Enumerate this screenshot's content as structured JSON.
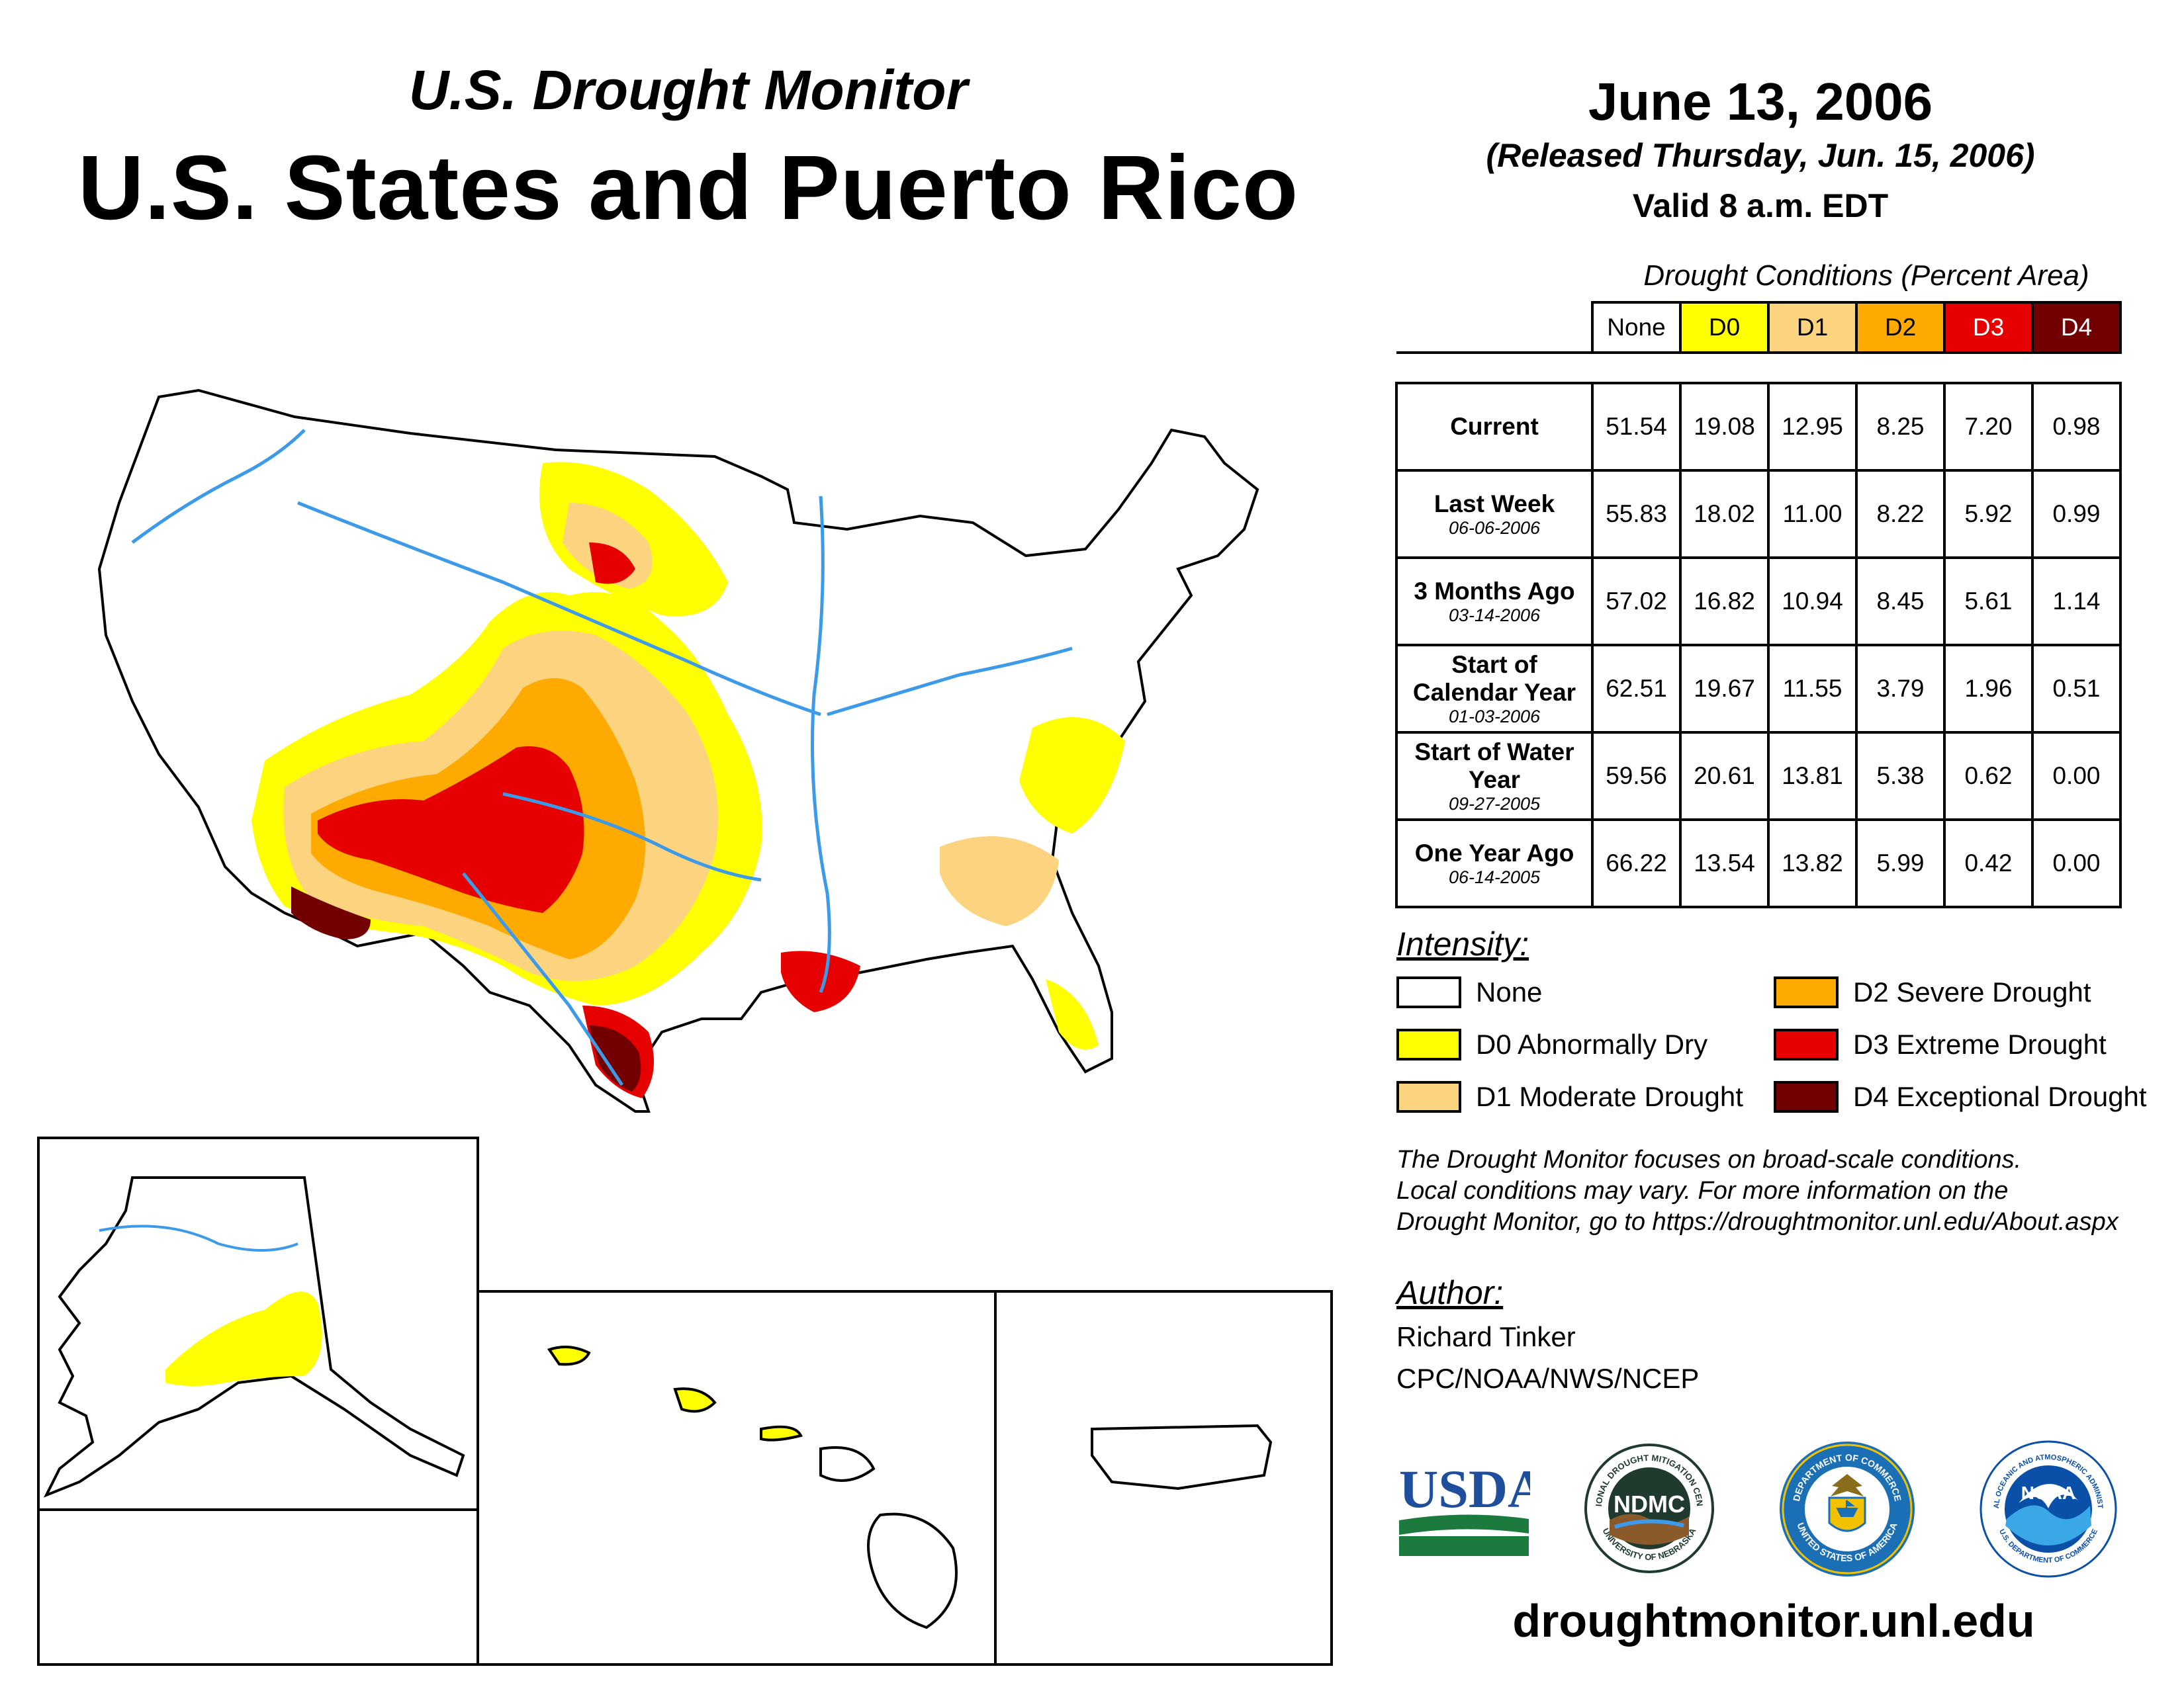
{
  "header": {
    "product_name": "U.S. Drought Monitor",
    "region_title": "U.S. States and Puerto Rico"
  },
  "dates": {
    "map_date": "June 13, 2006",
    "released": "(Released Thursday, Jun. 15, 2006)",
    "valid": "Valid 8 a.m. EDT"
  },
  "stats_table": {
    "caption": "Drought Conditions (Percent Area)",
    "columns": [
      {
        "label": "None",
        "color": "#ffffff"
      },
      {
        "label": "D0",
        "color": "#ffff00"
      },
      {
        "label": "D1",
        "color": "#fcd37f"
      },
      {
        "label": "D2",
        "color": "#ffaa00"
      },
      {
        "label": "D3",
        "color": "#e60000"
      },
      {
        "label": "D4",
        "color": "#730000"
      }
    ],
    "rows": [
      {
        "label": "Current",
        "date": "",
        "values": [
          "51.54",
          "19.08",
          "12.95",
          "8.25",
          "7.20",
          "0.98"
        ]
      },
      {
        "label": "Last Week",
        "date": "06-06-2006",
        "values": [
          "55.83",
          "18.02",
          "11.00",
          "8.22",
          "5.92",
          "0.99"
        ]
      },
      {
        "label": "3 Months Ago",
        "date": "03-14-2006",
        "values": [
          "57.02",
          "16.82",
          "10.94",
          "8.45",
          "5.61",
          "1.14"
        ]
      },
      {
        "label": "Start of Calendar Year",
        "date": "01-03-2006",
        "values": [
          "62.51",
          "19.67",
          "11.55",
          "3.79",
          "1.96",
          "0.51"
        ]
      },
      {
        "label": "Start of Water Year",
        "date": "09-27-2005",
        "values": [
          "59.56",
          "20.61",
          "13.81",
          "5.38",
          "0.62",
          "0.00"
        ]
      },
      {
        "label": "One Year Ago",
        "date": "06-14-2005",
        "values": [
          "66.22",
          "13.54",
          "13.82",
          "5.99",
          "0.42",
          "0.00"
        ]
      }
    ]
  },
  "legend": {
    "title": "Intensity:",
    "items": [
      {
        "label": "None",
        "color": "#ffffff"
      },
      {
        "label": "D0 Abnormally Dry",
        "color": "#ffff00"
      },
      {
        "label": "D1 Moderate Drought",
        "color": "#fcd37f"
      },
      {
        "label": "D2 Severe Drought",
        "color": "#ffaa00"
      },
      {
        "label": "D3 Extreme Drought",
        "color": "#e60000"
      },
      {
        "label": "D4 Exceptional Drought",
        "color": "#730000"
      }
    ]
  },
  "note": {
    "lines": [
      "The Drought Monitor focuses on broad-scale conditions.",
      "Local conditions may vary. For more information on the",
      "Drought Monitor, go to https://droughtmonitor.unl.edu/About.aspx"
    ]
  },
  "author": {
    "title": "Author:",
    "name": "Richard Tinker",
    "org": "CPC/NOAA/NWS/NCEP"
  },
  "logos": {
    "usda": "USDA",
    "ndmc": "NDMC",
    "ndmc_ring_top": "NATIONAL DROUGHT MITIGATION CENTER",
    "ndmc_ring_bottom": "UNIVERSITY OF NEBRASKA",
    "doc_ring_top": "DEPARTMENT OF COMMERCE",
    "doc_ring_bottom": "UNITED STATES OF AMERICA",
    "noaa": "NOAA",
    "noaa_ring_top": "NATIONAL OCEANIC AND ATMOSPHERIC ADMINISTRATION",
    "noaa_ring_bottom": "U.S. DEPARTMENT OF COMMERCE"
  },
  "footer": {
    "url": "droughtmonitor.unl.edu"
  },
  "colors": {
    "river": "#3d9ae8",
    "usda_blue": "#1f4e9c",
    "usda_green": "#1d7a3e",
    "ndmc_dark": "#203a2e",
    "doc_blue": "#1b6fb4",
    "noaa_blue": "#0a4fa8"
  }
}
